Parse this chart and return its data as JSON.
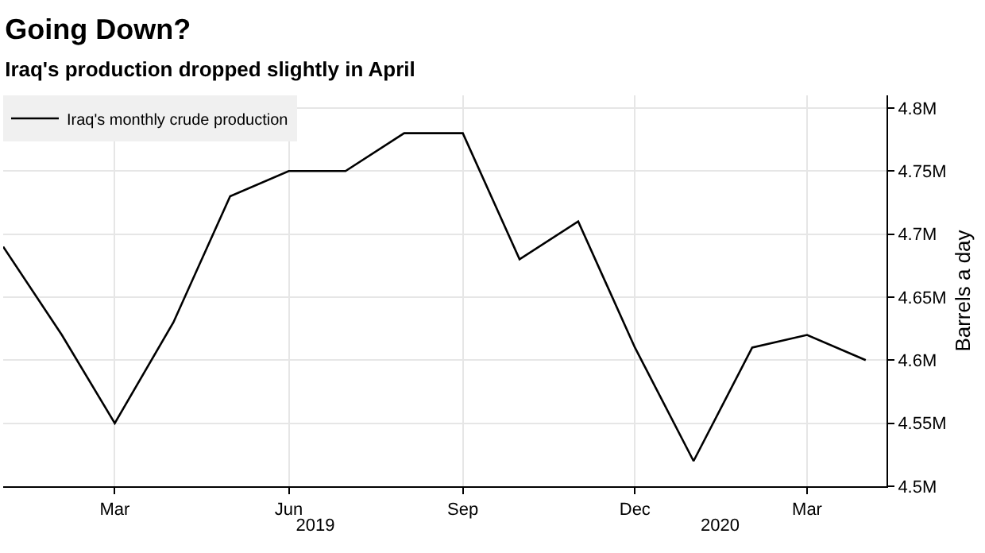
{
  "chart_data": {
    "type": "line",
    "title": "Going Down?",
    "subtitle": "Iraq's production dropped slightly in April",
    "ylabel": "Barrels a day",
    "x": [
      "2019-01",
      "2019-02",
      "2019-03",
      "2019-04",
      "2019-05",
      "2019-06",
      "2019-07",
      "2019-08",
      "2019-09",
      "2019-10",
      "2019-11",
      "2019-12",
      "2020-01",
      "2020-02",
      "2020-03",
      "2020-04"
    ],
    "series": [
      {
        "name": "Iraq's monthly crude production",
        "color": "#000000",
        "values": [
          4.69,
          4.62,
          4.55,
          4.63,
          4.73,
          4.75,
          4.75,
          4.78,
          4.78,
          4.68,
          4.71,
          4.61,
          4.52,
          4.61,
          4.62,
          4.6
        ]
      }
    ],
    "xlim": [
      "2019-01-01",
      "2020-04-12"
    ],
    "xticks": [
      {
        "value": "2019-03-01",
        "label": "Mar"
      },
      {
        "value": "2019-06-01",
        "label": "Jun"
      },
      {
        "value": "2019-09-01",
        "label": "Sep"
      },
      {
        "value": "2019-12-01",
        "label": "Dec"
      },
      {
        "value": "2020-03-01",
        "label": "Mar"
      }
    ],
    "x2lim": [
      "2019-01-01",
      "2020-04-12"
    ],
    "x2ticks": [
      {
        "value": "2019-06-15",
        "label": "2019"
      },
      {
        "value": "2020-01-15",
        "label": "2020"
      }
    ],
    "ylim": [
      4.5,
      4.81
    ],
    "yticks": [
      {
        "value": 4.5,
        "label": "4.5M"
      },
      {
        "value": 4.55,
        "label": "4.55M"
      },
      {
        "value": 4.6,
        "label": "4.6M"
      },
      {
        "value": 4.65,
        "label": "4.65M"
      },
      {
        "value": 4.7,
        "label": "4.7M"
      },
      {
        "value": 4.75,
        "label": "4.75M"
      },
      {
        "value": 4.8,
        "label": "4.8M"
      }
    ],
    "grid": true,
    "legend": "top left",
    "line_style": "solid",
    "marker": "none"
  }
}
